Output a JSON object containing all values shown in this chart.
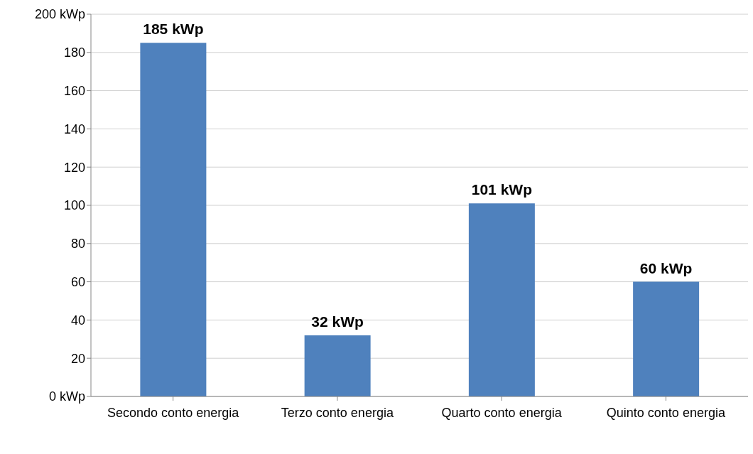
{
  "chart_data": {
    "type": "bar",
    "categories": [
      "Secondo conto energia",
      "Terzo conto energia",
      "Quarto conto energia",
      "Quinto conto energia"
    ],
    "values": [
      185,
      32,
      101,
      60
    ],
    "value_labels": [
      "185 kWp",
      "32 kWp",
      "101 kWp",
      "60 kWp"
    ],
    "color": "#4f81bd",
    "ylim": [
      0,
      200
    ],
    "yticks": [
      {
        "value": 0,
        "label": "0 kWp"
      },
      20,
      40,
      60,
      80,
      100,
      120,
      140,
      160,
      180,
      {
        "value": 200,
        "label": "200 kWp"
      }
    ],
    "grid": "y"
  }
}
